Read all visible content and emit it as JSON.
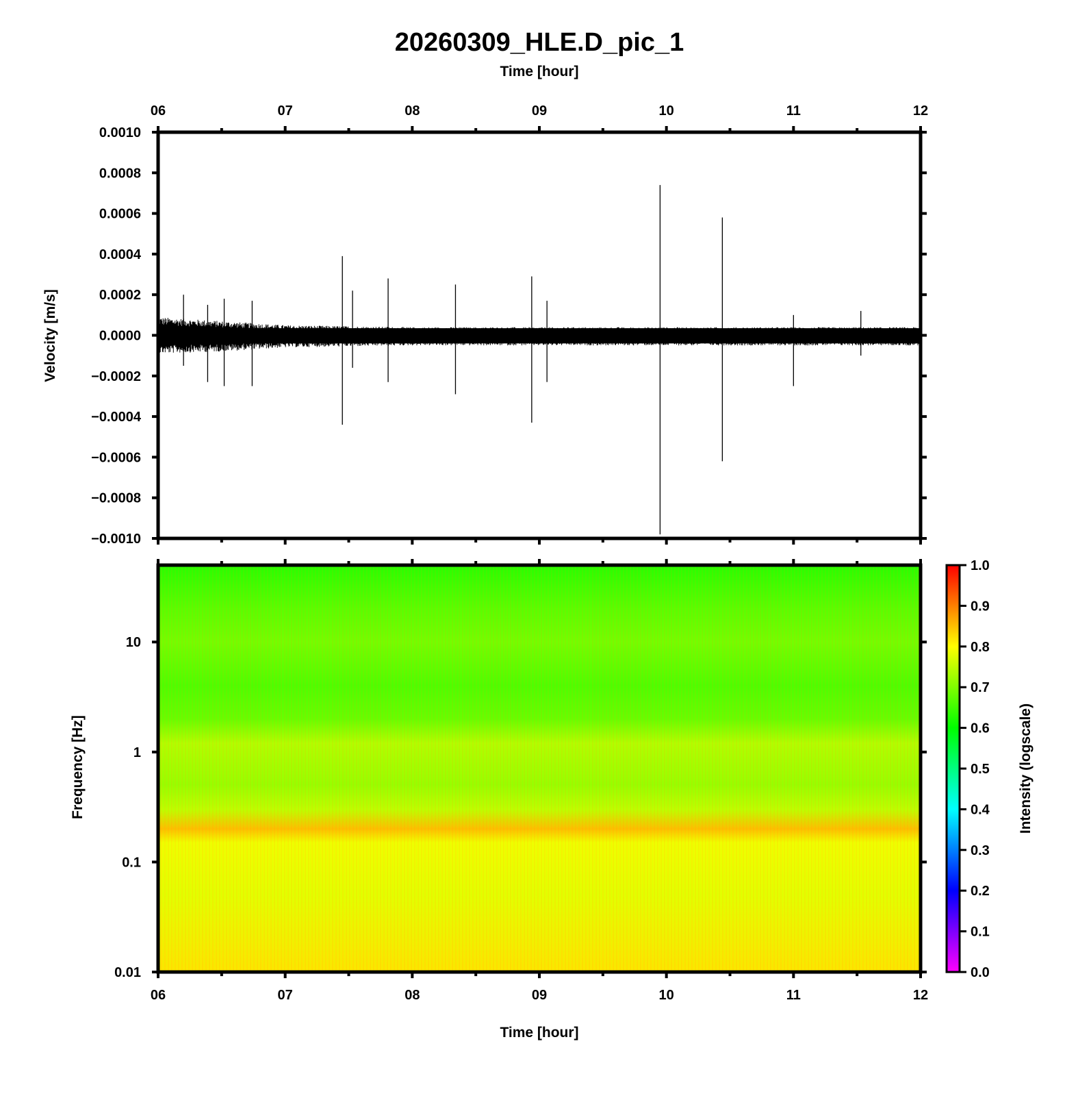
{
  "chart_data": [
    {
      "type": "line",
      "title": "20260309_HLE.D_pic_1",
      "xlabel": "Time [hour]",
      "ylabel": "Velocity [m/s]",
      "xlim": [
        6,
        12
      ],
      "ylim": [
        -0.001,
        0.001
      ],
      "x_ticks": [
        "06",
        "07",
        "08",
        "09",
        "10",
        "11",
        "12"
      ],
      "y_ticks": [
        "0.0010",
        "0.0008",
        "0.0006",
        "0.0004",
        "0.0002",
        "0.0000",
        "−0.0002",
        "−0.0004",
        "−0.0006",
        "−0.0008",
        "−0.0010"
      ],
      "y_tick_values": [
        0.001,
        0.0008,
        0.0006,
        0.0004,
        0.0002,
        0,
        -0.0002,
        -0.0004,
        -0.0006,
        -0.0008,
        -0.001
      ],
      "noise_band": [
        {
          "t": 6.0,
          "upper": 9e-05,
          "lower": -9e-05
        },
        {
          "t": 6.5,
          "upper": 7e-05,
          "lower": -8e-05
        },
        {
          "t": 7.0,
          "upper": 5e-05,
          "lower": -6e-05
        },
        {
          "t": 8.0,
          "upper": 4e-05,
          "lower": -5e-05
        },
        {
          "t": 10.0,
          "upper": 4e-05,
          "lower": -5e-05
        },
        {
          "t": 12.0,
          "upper": 4e-05,
          "lower": -5e-05
        }
      ],
      "spikes": [
        {
          "t": 6.2,
          "max": 0.0002,
          "min": -0.00015
        },
        {
          "t": 6.39,
          "max": 0.00015,
          "min": -0.00023
        },
        {
          "t": 6.52,
          "max": 0.00018,
          "min": -0.00025
        },
        {
          "t": 6.74,
          "max": 0.00017,
          "min": -0.00025
        },
        {
          "t": 7.45,
          "max": 0.00039,
          "min": -0.00044
        },
        {
          "t": 7.53,
          "max": 0.00022,
          "min": -0.00016
        },
        {
          "t": 7.81,
          "max": 0.00028,
          "min": -0.00023
        },
        {
          "t": 8.34,
          "max": 0.00025,
          "min": -0.00029
        },
        {
          "t": 8.94,
          "max": 0.00029,
          "min": -0.00043
        },
        {
          "t": 9.06,
          "max": 0.00017,
          "min": -0.00023
        },
        {
          "t": 9.95,
          "max": 0.00074,
          "min": -0.00098
        },
        {
          "t": 10.44,
          "max": 0.00058,
          "min": -0.00062
        },
        {
          "t": 11.0,
          "max": 0.0001,
          "min": -0.00025
        },
        {
          "t": 11.53,
          "max": 0.00012,
          "min": -0.0001
        }
      ]
    },
    {
      "type": "heatmap",
      "xlabel": "Time [hour]",
      "ylabel": "Frequency [Hz]",
      "xlim": [
        6,
        12
      ],
      "ylim": [
        0.01,
        50
      ],
      "y_scale": "log",
      "x_ticks": [
        "06",
        "07",
        "08",
        "09",
        "10",
        "11",
        "12"
      ],
      "y_ticks": [
        "10",
        "1",
        "0.1",
        "0.01"
      ],
      "y_tick_values": [
        10,
        1,
        0.1,
        0.01
      ],
      "intensity_profile": [
        {
          "freq": 50,
          "intensity": 0.63
        },
        {
          "freq": 20,
          "intensity": 0.67
        },
        {
          "freq": 10,
          "intensity": 0.69
        },
        {
          "freq": 4,
          "intensity": 0.66
        },
        {
          "freq": 2,
          "intensity": 0.68
        },
        {
          "freq": 1.2,
          "intensity": 0.74
        },
        {
          "freq": 0.8,
          "intensity": 0.73
        },
        {
          "freq": 0.5,
          "intensity": 0.72
        },
        {
          "freq": 0.3,
          "intensity": 0.75
        },
        {
          "freq": 0.2,
          "intensity": 0.85
        },
        {
          "freq": 0.15,
          "intensity": 0.79
        },
        {
          "freq": 0.05,
          "intensity": 0.78
        },
        {
          "freq": 0.01,
          "intensity": 0.82
        }
      ],
      "colorbar": {
        "label": "Intensity (logscale)",
        "range": [
          0,
          1
        ],
        "ticks": [
          "1.0",
          "0.9",
          "0.8",
          "0.7",
          "0.6",
          "0.5",
          "0.4",
          "0.3",
          "0.2",
          "0.1",
          "0.0"
        ],
        "tick_values": [
          1.0,
          0.9,
          0.8,
          0.7,
          0.6,
          0.5,
          0.4,
          0.3,
          0.2,
          0.1,
          0.0
        ],
        "colormap": [
          "#ff00ff",
          "#0000ff",
          "#00ffff",
          "#00ff00",
          "#ffff00",
          "#ff0000"
        ]
      }
    }
  ]
}
